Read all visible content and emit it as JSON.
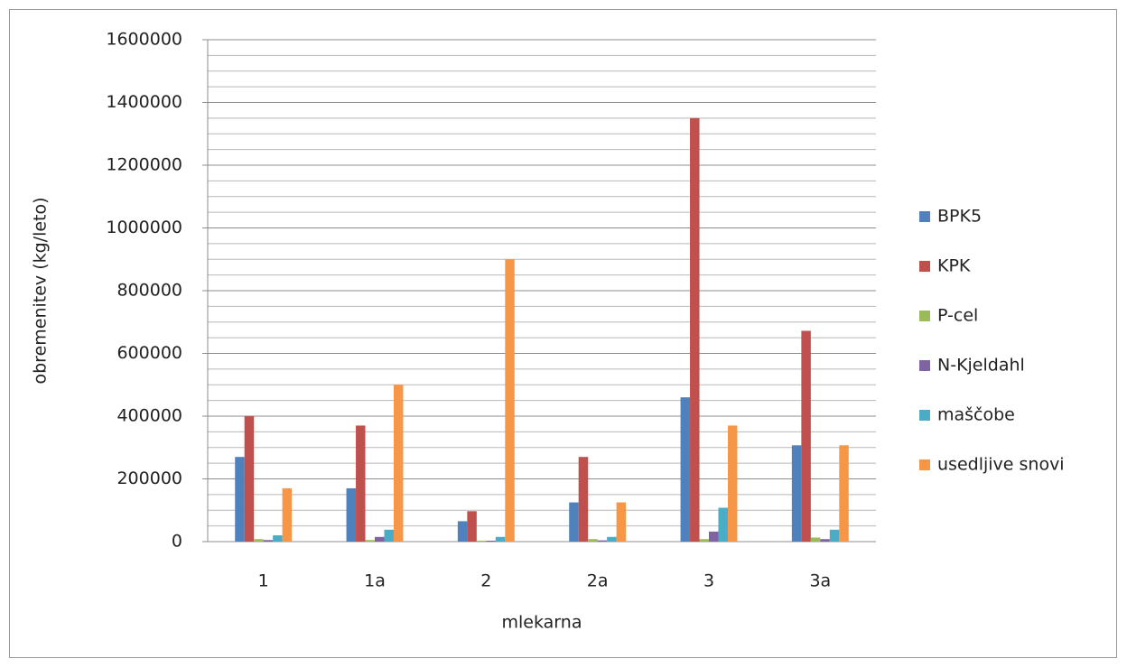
{
  "chart_data": {
    "type": "bar",
    "x_label": "mlekarna",
    "y_label": "obremenitev (kg/leto)",
    "categories": [
      "1",
      "1a",
      "2",
      "2a",
      "3",
      "3a"
    ],
    "series": [
      {
        "name": "BPK5",
        "color": "#4f81bd",
        "values": [
          270000,
          170000,
          65000,
          125000,
          460000,
          307000
        ]
      },
      {
        "name": "KPK",
        "color": "#c0504d",
        "values": [
          400000,
          370000,
          97000,
          270000,
          1350000,
          672000
        ]
      },
      {
        "name": "P-cel",
        "color": "#9bbb59",
        "values": [
          8000,
          5000,
          3000,
          8000,
          8000,
          13000
        ]
      },
      {
        "name": "N-Kjeldahl",
        "color": "#8064a2",
        "values": [
          5000,
          15000,
          3000,
          4000,
          32000,
          8000
        ]
      },
      {
        "name": "maščobe",
        "color": "#4bacc6",
        "values": [
          20000,
          38000,
          15000,
          15000,
          108000,
          38000
        ]
      },
      {
        "name": "usedljive snovi",
        "color": "#f79646",
        "values": [
          170000,
          500000,
          900000,
          125000,
          370000,
          307000
        ]
      }
    ],
    "ylim": [
      0,
      1600000
    ],
    "yticks": [
      0,
      200000,
      400000,
      600000,
      800000,
      1000000,
      1200000,
      1400000,
      1600000
    ],
    "yminorticks": [
      50000,
      100000,
      150000,
      250000,
      300000,
      350000,
      450000,
      500000,
      550000,
      650000,
      700000,
      750000,
      850000,
      900000,
      950000,
      1050000,
      1100000,
      1150000,
      1250000,
      1300000,
      1350000,
      1450000,
      1500000,
      1550000
    ],
    "grid": true,
    "legend": "right"
  }
}
